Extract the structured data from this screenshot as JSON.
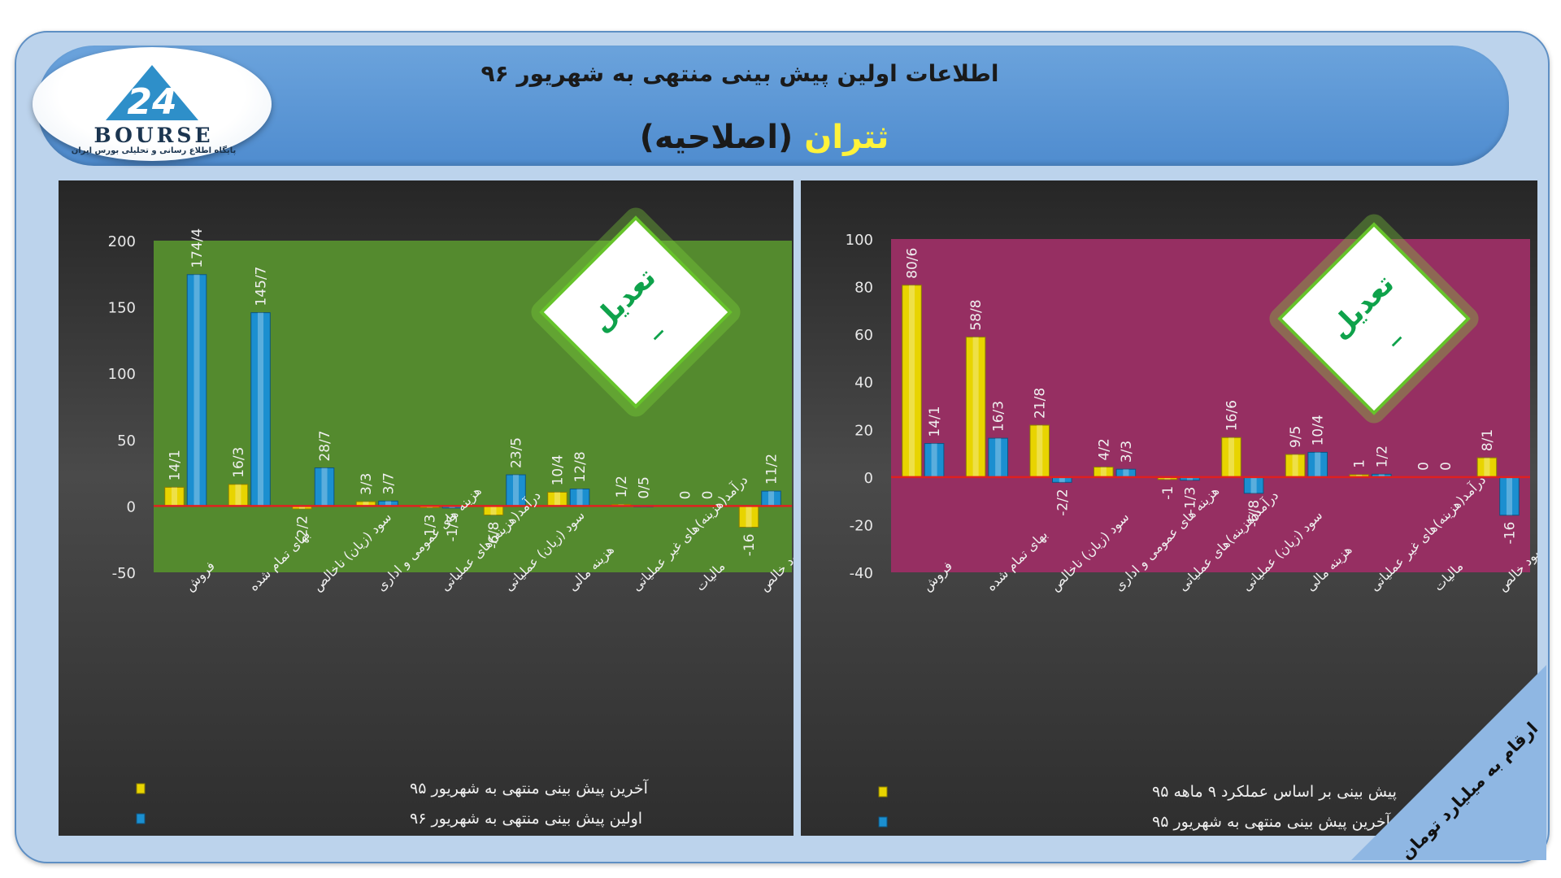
{
  "header": {
    "title": "اطلاعات اولین پیش بینی منتهی به شهریور ۹۶",
    "company_name": "ثتران",
    "company_note": "(اصلاحیه)"
  },
  "logo": {
    "text": "BOURSE",
    "subtitle": "پایگاه اطلاع رسانی و تحلیلی بورس ایران"
  },
  "badges": {
    "left_text": "تعدیل",
    "left_sign": "_",
    "right_text": "تعدیل",
    "right_sign": "_"
  },
  "corner_note": "ارقام به میلیارد تومان",
  "colors": {
    "left_plot_bg": "#548a2e",
    "right_plot_bg": "#962f62",
    "yellow_bar": "#e8d400",
    "blue_bar": "#1b8fd0",
    "zero_line": "#e02020"
  },
  "chart_data": [
    {
      "type": "bar",
      "categories": [
        "فروش",
        "بهای تمام شده",
        "سود (زیان) ناخالص",
        "هزینه های عمومی و اداری",
        "درآمد(هزینه)های عملیاتی",
        "سود (زیان) عملیاتی",
        "هزینه مالی",
        "درآمد(هزینه)های غیر عملیاتی",
        "مالیات",
        "سود خالص"
      ],
      "series": [
        {
          "name": "آخرین پیش بینی منتهی به شهریور ۹۵",
          "values": [
            14.1,
            16.3,
            -2.2,
            3.3,
            -1.3,
            -6.8,
            10.4,
            1.2,
            0,
            -16
          ],
          "labels": [
            "14/1",
            "16/3",
            "-2/2",
            "3/3",
            "-1/3",
            "-6/8",
            "10/4",
            "1/2",
            "0",
            "-16"
          ]
        },
        {
          "name": "اولین پیش بینی منتهی به شهریور ۹۶",
          "values": [
            174.4,
            145.7,
            28.7,
            3.7,
            -1.5,
            23.5,
            12.8,
            0.5,
            0,
            11.2
          ],
          "labels": [
            "174/4",
            "145/7",
            "28/7",
            "3/7",
            "-1/5",
            "23/5",
            "12/8",
            "0/5",
            "0",
            "11/2"
          ]
        }
      ],
      "ylim": [
        -50,
        200
      ],
      "yticks": [
        "200",
        "150",
        "100",
        "50",
        "0",
        "-50"
      ],
      "legend": "bottom-left"
    },
    {
      "type": "bar",
      "categories": [
        "فروش",
        "بهای تمام شده",
        "سود (زیان) ناخالص",
        "هزینه های عمومی و اداری",
        "درآمد(هزینه)های عملیاتی",
        "سود (زیان) عملیاتی",
        "هزینه مالی",
        "درآمد(هزینه)های غیر عملیاتی",
        "مالیات",
        "سود خالص"
      ],
      "series": [
        {
          "name": "پیش بینی بر اساس عملکرد ۹ ماهه ۹۵",
          "values": [
            80.6,
            58.8,
            21.8,
            4.2,
            -1,
            16.6,
            9.5,
            1,
            0,
            8.1
          ],
          "labels": [
            "80/6",
            "58/8",
            "21/8",
            "4/2",
            "-1",
            "16/6",
            "9/5",
            "1",
            "0",
            "8/1"
          ]
        },
        {
          "name": "آخرین پیش بینی منتهی به شهریور ۹۵",
          "values": [
            14.1,
            16.3,
            -2.2,
            3.3,
            -1.3,
            -6.8,
            10.4,
            1.2,
            0,
            -16
          ],
          "labels": [
            "14/1",
            "16/3",
            "-2/2",
            "3/3",
            "-1/3",
            "-6/8",
            "10/4",
            "1/2",
            "0",
            "-16"
          ]
        }
      ],
      "ylim": [
        -40,
        100
      ],
      "yticks": [
        "100",
        "80",
        "60",
        "40",
        "20",
        "0",
        "-20",
        "-40"
      ],
      "legend": "bottom-left"
    }
  ]
}
